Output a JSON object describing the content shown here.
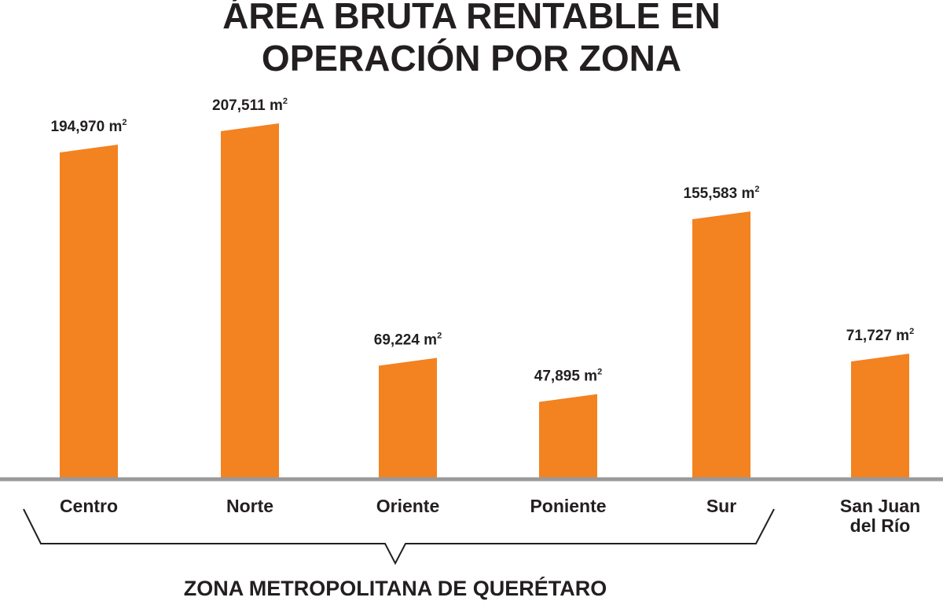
{
  "chart_data": {
    "type": "bar",
    "title_lines": [
      "ÁREA BRUTA RENTABLE  EN",
      "OPERACIÓN POR ZONA"
    ],
    "categories": [
      "Centro",
      "Norte",
      "Oriente",
      "Poniente",
      "Sur",
      "San Juan del Río"
    ],
    "category_lines": [
      [
        "Centro"
      ],
      [
        "Norte"
      ],
      [
        "Oriente"
      ],
      [
        "Poniente"
      ],
      [
        "Sur"
      ],
      [
        "San Juan",
        "del Río"
      ]
    ],
    "values": [
      194970,
      207511,
      69224,
      47895,
      155583,
      71727
    ],
    "value_labels": [
      "194,970",
      "207,511",
      "69,224",
      "47,895",
      "155,583",
      "71,727"
    ],
    "unit_base": "m",
    "unit_exponent": "2",
    "group_label": "ZONA METROPOLITANA DE QUERÉTARO",
    "bar_color": "#f38220",
    "axis_color": "#9a9a9a",
    "text_color": "#231f20",
    "xlabel": "",
    "ylabel": "",
    "ylim": [
      0,
      215000
    ],
    "grid": false,
    "legend": "none"
  }
}
